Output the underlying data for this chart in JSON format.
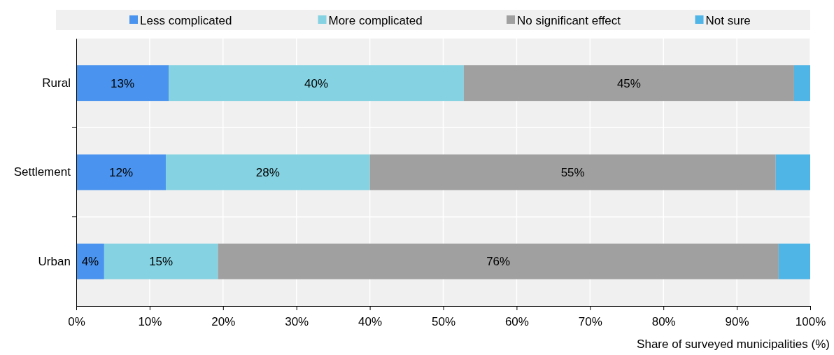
{
  "chart_data": {
    "type": "bar",
    "orientation": "horizontal",
    "stacked": true,
    "categories": [
      "Rural",
      "Settlement",
      "Urban"
    ],
    "series": [
      {
        "name": "Less complicated",
        "color": "#4a93ee",
        "values": [
          12.6,
          12.2,
          3.8
        ],
        "value_labels": [
          "13%",
          "12%",
          "4%"
        ]
      },
      {
        "name": "More complicated",
        "color": "#84d2e2",
        "values": [
          40.2,
          27.8,
          15.5
        ],
        "value_labels": [
          "40%",
          "28%",
          "15%"
        ]
      },
      {
        "name": "No significant effect",
        "color": "#a0a0a0",
        "values": [
          45.0,
          55.3,
          76.4
        ],
        "value_labels": [
          "45%",
          "55%",
          "76%"
        ]
      },
      {
        "name": "Not sure",
        "color": "#4fb4e6",
        "values": [
          2.2,
          4.7,
          4.3
        ]
      }
    ],
    "xlim": [
      0,
      100
    ],
    "xticks": [
      {
        "value": 0,
        "label": "0%"
      },
      {
        "value": 10,
        "label": "10%"
      },
      {
        "value": 20,
        "label": "20%"
      },
      {
        "value": 30,
        "label": "30%"
      },
      {
        "value": 40,
        "label": "40%"
      },
      {
        "value": 50,
        "label": "50%"
      },
      {
        "value": 60,
        "label": "60%"
      },
      {
        "value": 70,
        "label": "70%"
      },
      {
        "value": 80,
        "label": "80%"
      },
      {
        "value": 90,
        "label": "90%"
      },
      {
        "value": 100,
        "label": "100%"
      }
    ],
    "xlabel": "Share of surveyed municipalities (%)",
    "grid": "x",
    "legend": "top"
  }
}
